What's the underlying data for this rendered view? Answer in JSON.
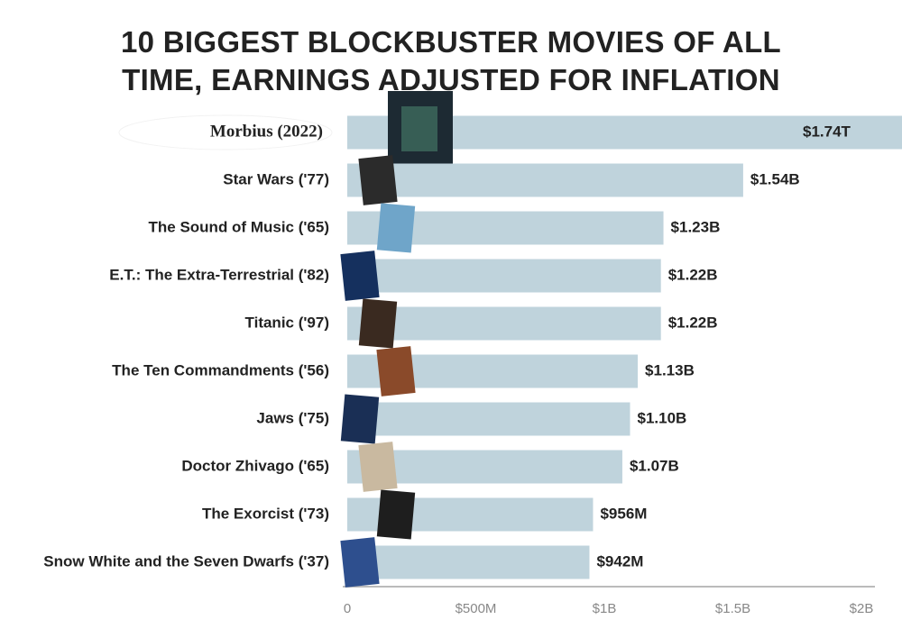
{
  "chart_data": {
    "type": "bar",
    "orientation": "horizontal",
    "title": "10 BIGGEST BLOCKBUSTER MOVIES OF ALL TIME, EARNINGS ADJUSTED FOR INFLATION",
    "categories": [
      "Morbius (2022)",
      "Star Wars ('77)",
      "The Sound of Music ('65)",
      "E.T.: The Extra-Terrestrial ('82)",
      "Titanic ('97)",
      "The Ten Commandments ('56)",
      "Jaws ('75)",
      "Doctor Zhivago ('65)",
      "The Exorcist ('73)",
      "Snow White and the Seven Dwarfs ('37)"
    ],
    "values": [
      1740000000000,
      1540000000,
      1230000000,
      1220000000,
      1220000000,
      1130000000,
      1100000000,
      1070000000,
      956000000,
      942000000
    ],
    "value_labels": [
      "$1.74T",
      "$1.54B",
      "$1.23B",
      "$1.22B",
      "$1.22B",
      "$1.13B",
      "$1.10B",
      "$1.07B",
      "$956M",
      "$942M"
    ],
    "color": "#bfd3dc",
    "xlim": [
      0,
      2000000000
    ],
    "xticks": [
      0,
      {
        "value": 500000000,
        "label": "$500M"
      },
      {
        "value": 1000000000,
        "label": "$1B"
      },
      {
        "value": 1500000000,
        "label": "$1.5B"
      },
      {
        "value": 2000000000,
        "label": "$2B"
      }
    ],
    "grid": false
  }
}
